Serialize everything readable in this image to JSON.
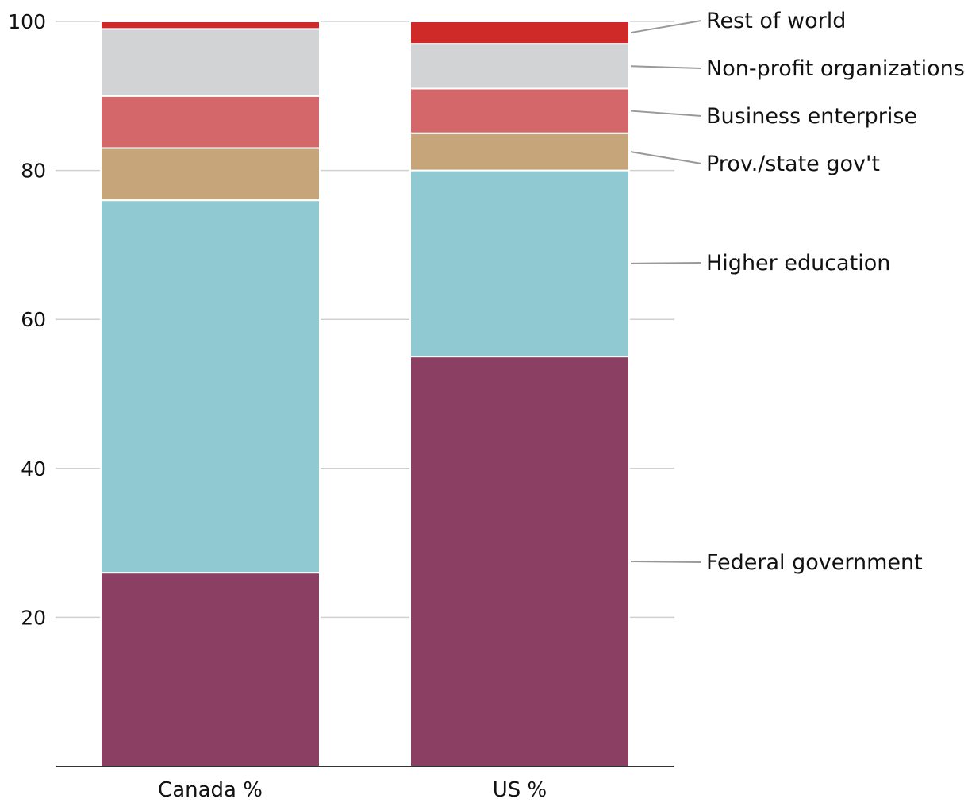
{
  "chart_data": {
    "type": "bar",
    "stacked": true,
    "title": "",
    "xlabel": "",
    "ylabel": "",
    "ylim": [
      0,
      100
    ],
    "yticks": [
      20,
      40,
      60,
      80,
      100
    ],
    "categories": [
      "Canada %",
      "US %"
    ],
    "series": [
      {
        "name": "Federal government",
        "color": "#8B3F63",
        "values": [
          26,
          55
        ]
      },
      {
        "name": "Higher education",
        "color": "#91C9D3",
        "values": [
          50,
          25
        ]
      },
      {
        "name": "Prov./state gov't",
        "color": "#C7A57B",
        "values": [
          7,
          5
        ]
      },
      {
        "name": "Business enterprise",
        "color": "#D4676A",
        "values": [
          7,
          6
        ]
      },
      {
        "name": "Non-profit organizations",
        "color": "#D2D3D5",
        "values": [
          9,
          6
        ]
      },
      {
        "name": "Rest of world",
        "color": "#CF2A27",
        "values": [
          1,
          3
        ]
      }
    ],
    "legend_placement": "right"
  }
}
